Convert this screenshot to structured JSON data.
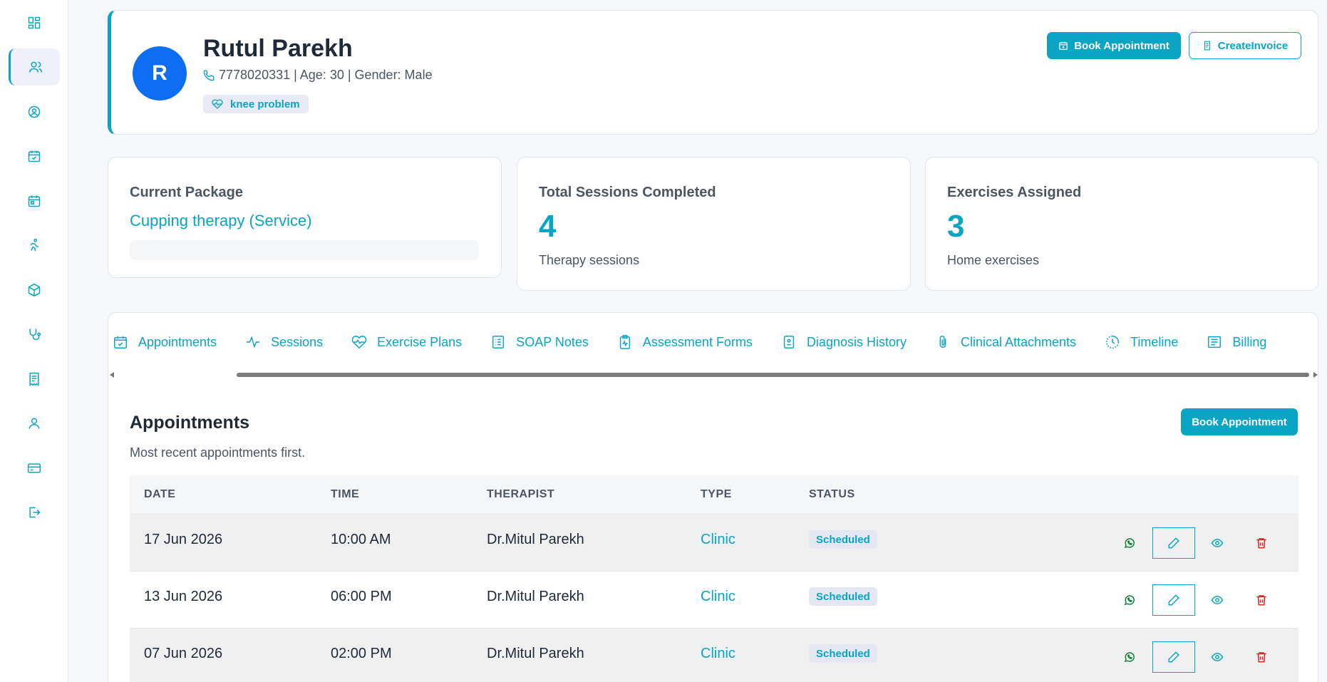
{
  "sidebar": {
    "items": [
      {
        "icon": "dashboard-icon"
      },
      {
        "icon": "users-icon",
        "active": true
      },
      {
        "icon": "user-circle-icon"
      },
      {
        "icon": "calendar-check-icon"
      },
      {
        "icon": "calendar-icon"
      },
      {
        "icon": "running-icon"
      },
      {
        "icon": "package-icon"
      },
      {
        "icon": "stethoscope-icon"
      },
      {
        "icon": "receipt-icon"
      },
      {
        "icon": "user-icon"
      },
      {
        "icon": "credit-card-icon"
      },
      {
        "icon": "logout-icon"
      }
    ]
  },
  "patient": {
    "initial": "R",
    "name": "Rutul Parekh",
    "meta": "7778020331 | Age: 30 | Gender: Male",
    "condition": "knee problem"
  },
  "header_actions": {
    "book_label": "Book Appointment",
    "invoice_label": "CreateInvoice"
  },
  "stats": {
    "package": {
      "title": "Current Package",
      "value": "Cupping therapy (Service)"
    },
    "sessions": {
      "title": "Total Sessions Completed",
      "value": "4",
      "sub": "Therapy sessions"
    },
    "exercises": {
      "title": "Exercises Assigned",
      "value": "3",
      "sub": "Home exercises"
    }
  },
  "tabs": [
    {
      "label": "Appointments",
      "icon": "calendar-check-icon"
    },
    {
      "label": "Sessions",
      "icon": "activity-icon"
    },
    {
      "label": "Exercise Plans",
      "icon": "heart-pulse-icon"
    },
    {
      "label": "SOAP Notes",
      "icon": "notes-icon"
    },
    {
      "label": "Assessment Forms",
      "icon": "clipboard-icon"
    },
    {
      "label": "Diagnosis History",
      "icon": "file-icon"
    },
    {
      "label": "Clinical Attachments",
      "icon": "paperclip-icon"
    },
    {
      "label": "Timeline",
      "icon": "clock-icon"
    },
    {
      "label": "Billing",
      "icon": "billing-icon"
    }
  ],
  "appointments": {
    "title": "Appointments",
    "description": "Most recent appointments first.",
    "book_label": "Book Appointment",
    "columns": [
      "DATE",
      "TIME",
      "THERAPIST",
      "TYPE",
      "STATUS"
    ],
    "rows": [
      {
        "date": "17 Jun 2026",
        "time": "10:00 AM",
        "therapist": "Dr.Mitul Parekh",
        "type": "Clinic",
        "status": "Scheduled"
      },
      {
        "date": "13 Jun 2026",
        "time": "06:00 PM",
        "therapist": "Dr.Mitul Parekh",
        "type": "Clinic",
        "status": "Scheduled"
      },
      {
        "date": "07 Jun 2026",
        "time": "02:00 PM",
        "therapist": "Dr.Mitul Parekh",
        "type": "Clinic",
        "status": "Scheduled"
      }
    ]
  },
  "colors": {
    "accent": "#0aa4c4",
    "avatar": "#0e6ef2",
    "danger": "#dc2626",
    "whatsapp": "#15803d"
  }
}
